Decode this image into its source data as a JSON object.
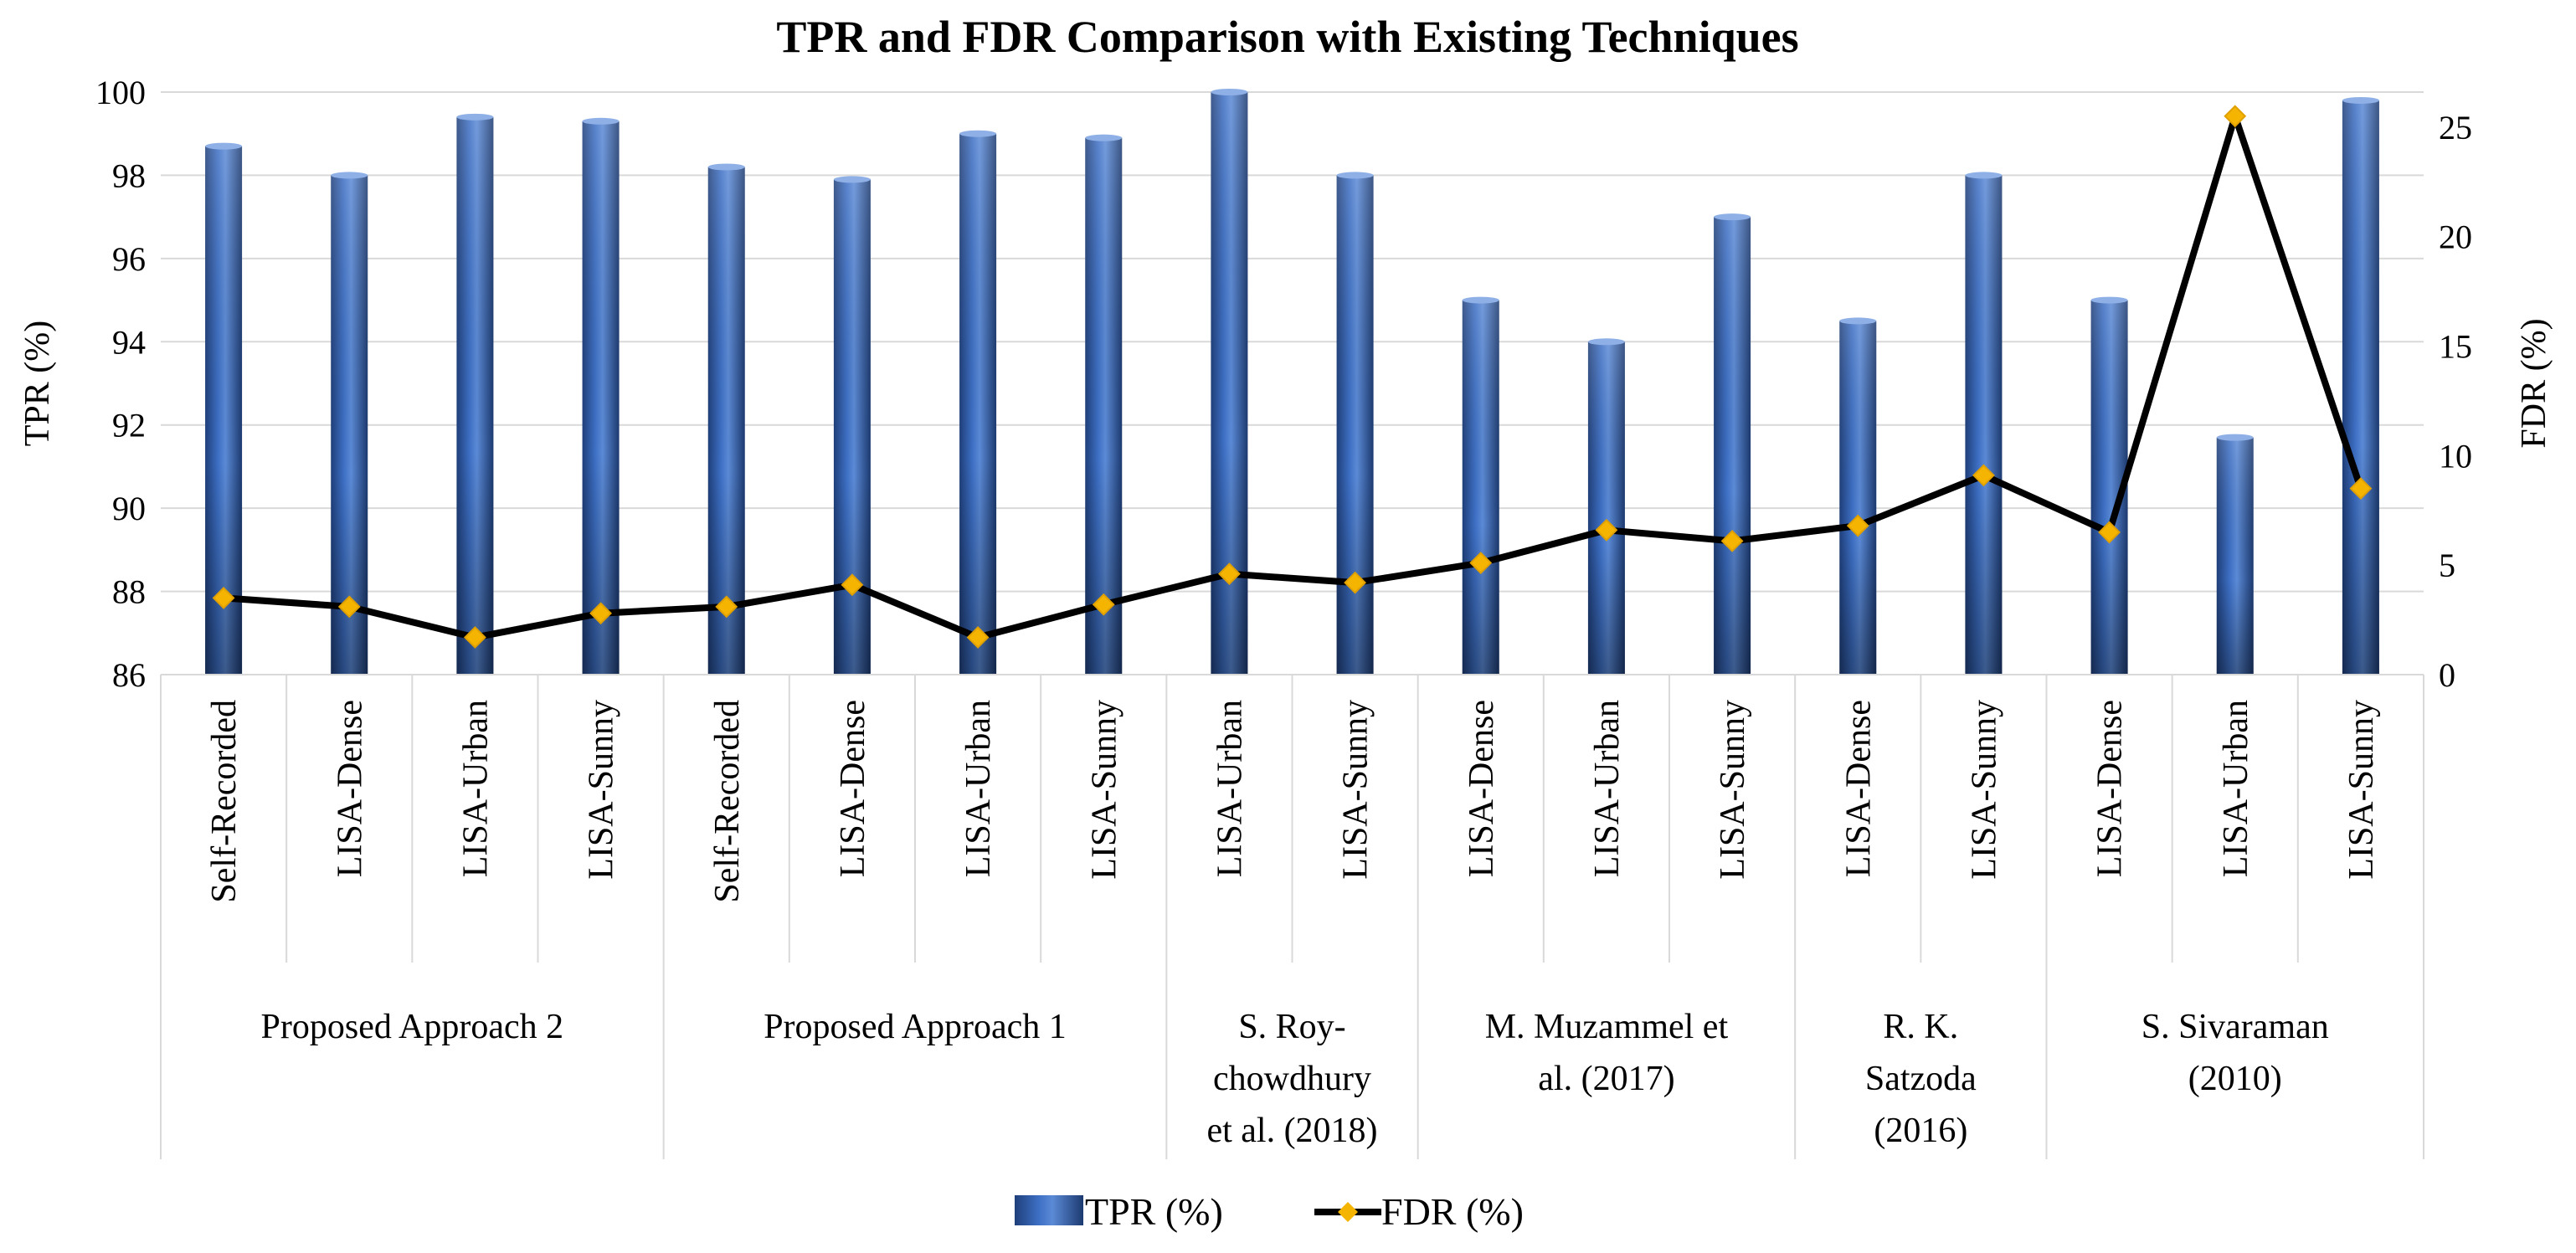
{
  "chart_data": {
    "type": "bar",
    "title": "TPR and FDR Comparison with Existing Techniques",
    "ylabel": "TPR (%)",
    "y2label": "FDR (%)",
    "ylim": [
      86,
      100
    ],
    "y2lim": [
      0,
      26.6
    ],
    "yticks": [
      86,
      88,
      90,
      92,
      94,
      96,
      98,
      100
    ],
    "y2ticks": [
      0,
      5,
      10,
      15,
      20,
      25
    ],
    "grid": true,
    "legend_position": "bottom",
    "categories": [
      "Self-Recorded",
      "LISA-Dense",
      "LISA-Urban",
      "LISA-Sunny",
      "Self-Recorded",
      "LISA-Dense",
      "LISA-Urban",
      "LISA-Sunny",
      "LISA-Urban",
      "LISA-Sunny",
      "LISA-Dense",
      "LISA-Urban",
      "LISA-Sunny",
      "LISA-Dense",
      "LISA-Sunny",
      "LISA-Dense",
      "LISA-Urban",
      "LISA-Sunny"
    ],
    "groups": [
      {
        "lines": [
          "Proposed Approach 2"
        ],
        "span": [
          0,
          3
        ]
      },
      {
        "lines": [
          "Proposed Approach 1"
        ],
        "span": [
          4,
          7
        ]
      },
      {
        "lines": [
          "S. Roy-",
          "chowdhury",
          "et al. (2018)"
        ],
        "span": [
          8,
          9
        ]
      },
      {
        "lines": [
          "M. Muzammel et",
          "al. (2017)"
        ],
        "span": [
          10,
          12
        ]
      },
      {
        "lines": [
          "R. K.",
          "Satzoda",
          "(2016)"
        ],
        "span": [
          13,
          14
        ]
      },
      {
        "lines": [
          "S. Sivaraman",
          "(2010)"
        ],
        "span": [
          15,
          17
        ]
      }
    ],
    "series": [
      {
        "name": "TPR (%)",
        "type": "bar",
        "axis": "left",
        "values": [
          98.7,
          98.0,
          99.4,
          99.3,
          98.2,
          97.9,
          99.0,
          98.9,
          100.0,
          98.0,
          95.0,
          94.0,
          97.0,
          94.5,
          98.0,
          95.0,
          91.7,
          99.8
        ]
      },
      {
        "name": "FDR (%)",
        "type": "line",
        "axis": "right",
        "values": [
          3.5,
          3.1,
          1.7,
          2.8,
          3.1,
          4.1,
          1.7,
          3.2,
          4.6,
          4.2,
          5.1,
          6.6,
          6.1,
          6.8,
          9.1,
          6.5,
          25.5,
          8.5
        ]
      }
    ]
  }
}
